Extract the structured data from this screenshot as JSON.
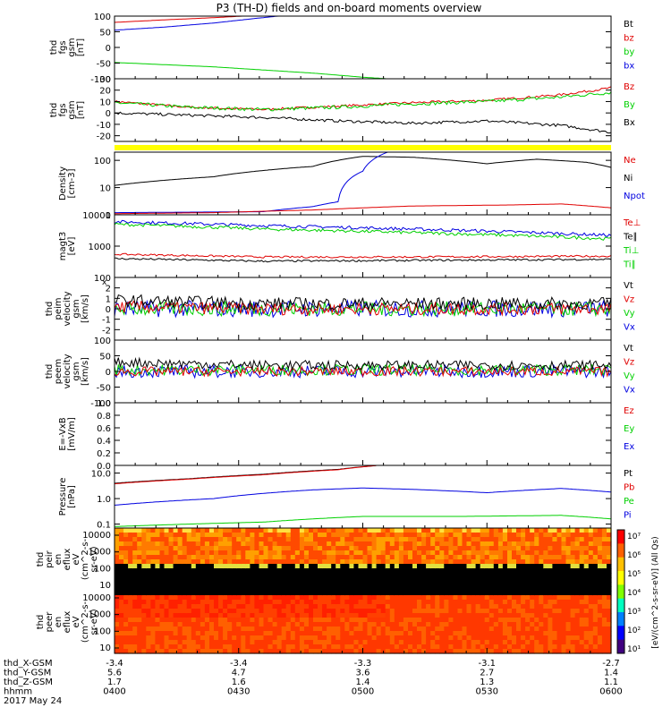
{
  "title": "P3 (TH-D) fields and on-board moments overview",
  "colors": {
    "black": "#000000",
    "red": "#e00000",
    "green": "#00d000",
    "blue": "#0000e0",
    "yellow": "#ffff00"
  },
  "chart_data": [
    {
      "id": "fgs_bt",
      "type": "line",
      "ylabel": [
        "thd",
        "fgs",
        "gsm",
        "[nT]"
      ],
      "ylim": [
        -100,
        100
      ],
      "yticks": [
        "100",
        "50",
        "0",
        "-50",
        "-100"
      ],
      "legend": [
        {
          "label": "Bt",
          "color": "black"
        },
        {
          "label": "bz",
          "color": "red"
        },
        {
          "label": "by",
          "color": "green"
        },
        {
          "label": "bx",
          "color": "blue"
        }
      ],
      "series": [
        {
          "name": "bz",
          "color": "red",
          "x": [
            0,
            0.1,
            0.2,
            0.28,
            0.36
          ],
          "y": [
            80,
            88,
            95,
            102,
            110
          ]
        },
        {
          "name": "bx",
          "color": "blue",
          "x": [
            0,
            0.1,
            0.2,
            0.28,
            0.36
          ],
          "y": [
            55,
            65,
            78,
            92,
            105
          ]
        },
        {
          "name": "by",
          "color": "green",
          "x": [
            0,
            0.1,
            0.2,
            0.3,
            0.4,
            0.5,
            0.55
          ],
          "y": [
            -48,
            -55,
            -62,
            -72,
            -82,
            -95,
            -100
          ]
        }
      ]
    },
    {
      "id": "fgs_b",
      "type": "line",
      "ylabel": [
        "thd",
        "fgs",
        "gsm",
        "[nT]"
      ],
      "ylim": [
        -25,
        30
      ],
      "yticks": [
        "30",
        "20",
        "10",
        "0",
        "-10",
        "-20"
      ],
      "legend": [
        {
          "label": "Bz",
          "color": "red"
        },
        {
          "label": "By",
          "color": "green"
        },
        {
          "label": "Bx",
          "color": "black"
        }
      ],
      "series": [
        {
          "name": "Bz",
          "color": "red",
          "noise": 1,
          "x": [
            0,
            0.15,
            0.3,
            0.45,
            0.6,
            0.75,
            0.9,
            1
          ],
          "y": [
            10,
            5,
            3,
            6,
            9,
            11,
            16,
            22
          ]
        },
        {
          "name": "By",
          "color": "green",
          "noise": 1.5,
          "x": [
            0,
            0.15,
            0.3,
            0.45,
            0.6,
            0.75,
            0.9,
            1
          ],
          "y": [
            9,
            5,
            3,
            5,
            8,
            10,
            14,
            18
          ]
        },
        {
          "name": "Bx",
          "color": "black",
          "noise": 1.2,
          "x": [
            0,
            0.15,
            0.3,
            0.45,
            0.6,
            0.75,
            0.9,
            1
          ],
          "y": [
            0,
            -2,
            -4,
            -7,
            -9,
            -7,
            -11,
            -17
          ]
        }
      ]
    },
    {
      "id": "density",
      "type": "line",
      "log": true,
      "ylabel": [
        "Density",
        "[cm-3]"
      ],
      "ylim": [
        1,
        200
      ],
      "yticks": [
        "100",
        "10",
        "1"
      ],
      "ytick_values": [
        100,
        10,
        1
      ],
      "legend": [
        {
          "label": "Ne",
          "color": "red"
        },
        {
          "label": "Ni",
          "color": "black"
        },
        {
          "label": "Npot",
          "color": "blue"
        }
      ],
      "series": [
        {
          "name": "Ni",
          "color": "black",
          "x": [
            0,
            0.2,
            0.4,
            0.5,
            0.6,
            0.75,
            0.85,
            0.95,
            1
          ],
          "y": [
            12,
            25,
            60,
            140,
            130,
            75,
            110,
            85,
            55
          ]
        },
        {
          "name": "Npot",
          "color": "blue",
          "x": [
            0,
            0.3,
            0.4,
            0.45,
            0.5,
            0.55
          ],
          "y": [
            1.2,
            1.3,
            2,
            3,
            40,
            200
          ]
        },
        {
          "name": "Ne",
          "color": "red",
          "x": [
            0,
            0.2,
            0.4,
            0.6,
            0.8,
            0.9,
            1
          ],
          "y": [
            1.1,
            1.2,
            1.5,
            2.1,
            2.3,
            2.5,
            1.8
          ]
        }
      ]
    },
    {
      "id": "temperature",
      "type": "line",
      "log": true,
      "ylabel": [
        "magt3",
        "[eV]"
      ],
      "ylim": [
        100,
        10000
      ],
      "yticks": [
        "10000",
        "1000",
        "100"
      ],
      "ytick_values": [
        10000,
        1000,
        100
      ],
      "legend": [
        {
          "label": "Te⊥",
          "color": "red"
        },
        {
          "label": "Te∥",
          "color": "black"
        },
        {
          "label": "Ti⊥",
          "color": "green"
        },
        {
          "label": "Ti∥",
          "color": "green"
        }
      ],
      "series": [
        {
          "name": "Ti∥ blue",
          "color": "blue",
          "noise": 0.05,
          "x": [
            0,
            0.3,
            0.6,
            1
          ],
          "y": [
            6000,
            4500,
            3500,
            2200
          ]
        },
        {
          "name": "Ti⊥",
          "color": "green",
          "noise": 0.05,
          "x": [
            0,
            0.3,
            0.6,
            1
          ],
          "y": [
            5000,
            3500,
            2700,
            1700
          ]
        },
        {
          "name": "Te⊥",
          "color": "red",
          "noise": 0.03,
          "x": [
            0,
            0.3,
            0.6,
            1
          ],
          "y": [
            550,
            450,
            450,
            480
          ]
        },
        {
          "name": "Te∥",
          "color": "black",
          "noise": 0.03,
          "x": [
            0,
            0.3,
            0.6,
            1
          ],
          "y": [
            400,
            330,
            350,
            380
          ]
        }
      ]
    },
    {
      "id": "peim_velocity",
      "type": "line",
      "ylabel": [
        "thd",
        "peim",
        "velocity",
        "gsm",
        "[km/s]"
      ],
      "ylim": [
        -3,
        3
      ],
      "yticks": [
        "2",
        "1",
        "0",
        "-1",
        "-2"
      ],
      "ytick_values": [
        2,
        1,
        0,
        -1,
        -2
      ],
      "tick_label_note": "x",
      "legend": [
        {
          "label": "Vt",
          "color": "black"
        },
        {
          "label": "Vz",
          "color": "red"
        },
        {
          "label": "Vy",
          "color": "green"
        },
        {
          "label": "Vx",
          "color": "blue"
        }
      ],
      "series": [
        {
          "name": "Vx",
          "color": "blue",
          "noise": 0.8,
          "x": [
            0,
            0.3,
            1
          ],
          "y": [
            0,
            0,
            0
          ]
        },
        {
          "name": "Vy",
          "color": "green",
          "noise": 0.7,
          "x": [
            0,
            0.3,
            1
          ],
          "y": [
            0,
            0,
            0
          ]
        },
        {
          "name": "Vz",
          "color": "red",
          "noise": 0.6,
          "x": [
            0,
            0.3,
            1
          ],
          "y": [
            0.2,
            0,
            0
          ]
        },
        {
          "name": "Vt",
          "color": "black",
          "noise": 0.6,
          "x": [
            0,
            0.3,
            1
          ],
          "y": [
            0.8,
            0.5,
            0.5
          ]
        }
      ]
    },
    {
      "id": "peem_velocity",
      "type": "line",
      "ylabel": [
        "thd",
        "peem",
        "velocity",
        "gsm",
        "[km/s]"
      ],
      "ylim": [
        -100,
        100
      ],
      "yticks": [
        "100",
        "50",
        "0",
        "-50",
        "-100"
      ],
      "legend": [
        {
          "label": "Vt",
          "color": "black"
        },
        {
          "label": "Vz",
          "color": "red"
        },
        {
          "label": "Vy",
          "color": "green"
        },
        {
          "label": "Vx",
          "color": "blue"
        }
      ],
      "series": [
        {
          "name": "Vx",
          "color": "blue",
          "noise": 20,
          "x": [
            0,
            1
          ],
          "y": [
            0,
            0
          ]
        },
        {
          "name": "Vy",
          "color": "green",
          "noise": 18,
          "x": [
            0,
            1
          ],
          "y": [
            5,
            5
          ]
        },
        {
          "name": "Vz",
          "color": "red",
          "noise": 15,
          "x": [
            0,
            1
          ],
          "y": [
            0,
            0
          ]
        },
        {
          "name": "Vt",
          "color": "black",
          "noise": 15,
          "x": [
            0,
            0.3,
            1
          ],
          "y": [
            30,
            20,
            20
          ]
        }
      ]
    },
    {
      "id": "efield",
      "type": "line",
      "ylabel": [
        "E=-VxB",
        "[mV/m]"
      ],
      "ylim": [
        0,
        1
      ],
      "yticks": [
        "1.0",
        "0.8",
        "0.6",
        "0.4",
        "0.2",
        "0.0"
      ],
      "legend": [
        {
          "label": "Ez",
          "color": "red"
        },
        {
          "label": "Ey",
          "color": "green"
        },
        {
          "label": "Ex",
          "color": "blue"
        }
      ],
      "series": []
    },
    {
      "id": "pressure",
      "type": "line",
      "log": true,
      "ylabel": [
        "Pressure",
        "[nPa]"
      ],
      "ylim": [
        0.07,
        20
      ],
      "yticks": [
        "10.0",
        "1.0",
        "0.1"
      ],
      "ytick_values": [
        10,
        1,
        0.1
      ],
      "legend": [
        {
          "label": "Pt",
          "color": "black"
        },
        {
          "label": "Pb",
          "color": "red"
        },
        {
          "label": "Pe",
          "color": "green"
        },
        {
          "label": "Pi",
          "color": "blue"
        }
      ],
      "series": [
        {
          "name": "Pt",
          "color": "black",
          "x": [
            0,
            0.15,
            0.3,
            0.45,
            0.53
          ],
          "y": [
            4,
            6,
            9,
            14,
            20
          ]
        },
        {
          "name": "Pb",
          "color": "red",
          "x": [
            0,
            0.15,
            0.3,
            0.45,
            0.53
          ],
          "y": [
            3.8,
            5.8,
            8.6,
            13.5,
            20
          ]
        },
        {
          "name": "Pi",
          "color": "blue",
          "x": [
            0,
            0.2,
            0.4,
            0.5,
            0.6,
            0.75,
            0.9,
            1
          ],
          "y": [
            0.55,
            1,
            2.2,
            2.6,
            2.3,
            1.7,
            2.5,
            1.8
          ]
        },
        {
          "name": "Pe",
          "color": "green",
          "x": [
            0,
            0.3,
            0.5,
            0.7,
            0.9,
            1
          ],
          "y": [
            0.08,
            0.12,
            0.2,
            0.2,
            0.22,
            0.16
          ]
        }
      ]
    },
    {
      "id": "peir_eflux",
      "type": "heatmap",
      "ylabel": [
        "thd",
        "peir",
        "en",
        "eflux",
        "eV",
        "(cm^2-s-",
        "sr-eV)"
      ],
      "yticks": [
        "10000",
        "1000",
        "100",
        "10"
      ]
    },
    {
      "id": "peer_eflux",
      "type": "heatmap",
      "ylabel": [
        "thd",
        "peer",
        "en",
        "eflux",
        "eV",
        "(cm^2-s-",
        "sr-eV)"
      ],
      "yticks": [
        "10000",
        "1000",
        "100",
        "10"
      ]
    }
  ],
  "colorbar": {
    "labels": [
      "10⁷",
      "10⁶",
      "10⁵",
      "10⁴",
      "10³",
      "10²",
      "10¹"
    ],
    "unit_text": "[eV/(cm^2-s-sr-eV)] (All Qs)"
  },
  "x_axis": {
    "rows": [
      {
        "label": "thd_X-GSM",
        "values": [
          "-3.4",
          "-3.4",
          "-3.3",
          "-3.1",
          "-2.7"
        ]
      },
      {
        "label": "thd_Y-GSM",
        "values": [
          "5.6",
          "4.7",
          "3.6",
          "2.7",
          "1.4"
        ]
      },
      {
        "label": "thd_Z-GSM",
        "values": [
          "1.7",
          "1.6",
          "1.4",
          "1.3",
          "1.1"
        ]
      },
      {
        "label": "hhmm",
        "values": [
          "0400",
          "0430",
          "0500",
          "0530",
          "0600"
        ]
      }
    ],
    "date": "2017 May 24"
  }
}
